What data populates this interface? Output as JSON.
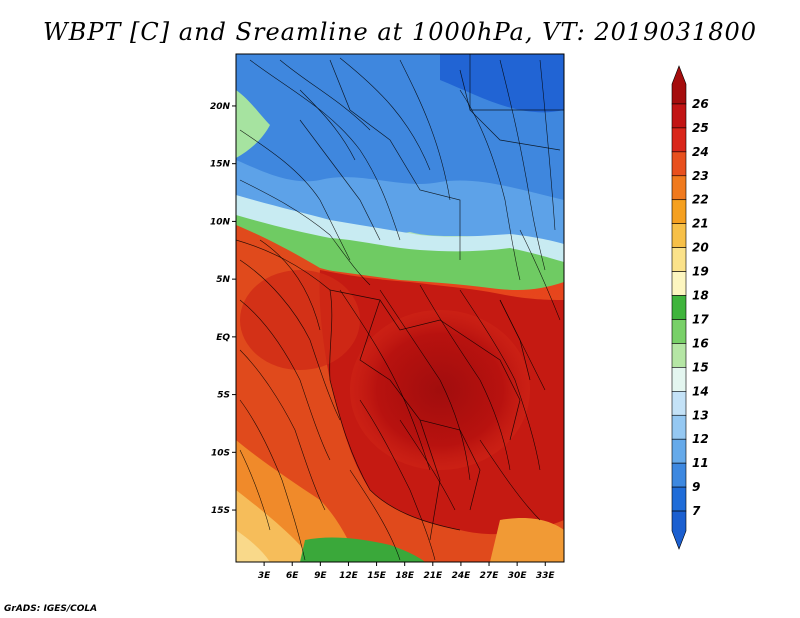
{
  "title": "WBPT [C] and Sreamline at 1000hPa, VT: 2019031800",
  "credit": "GrADS: IGES/COLA",
  "map": {
    "lat_labels": [
      "20N",
      "15N",
      "10N",
      "5N",
      "EQ",
      "5S",
      "10S",
      "15S"
    ],
    "lat_values": [
      20,
      15,
      10,
      5,
      0,
      -5,
      -10,
      -15
    ],
    "lon_labels": [
      "3E",
      "6E",
      "9E",
      "12E",
      "15E",
      "18E",
      "21E",
      "24E",
      "27E",
      "30E",
      "33E"
    ],
    "lon_values": [
      3,
      6,
      9,
      12,
      15,
      18,
      21,
      24,
      27,
      30,
      33
    ],
    "lon_range": [
      0,
      35
    ],
    "lat_range": [
      -19.5,
      24.5
    ]
  },
  "colorbar": {
    "labels": [
      "26",
      "25",
      "24",
      "23",
      "22",
      "21",
      "20",
      "19",
      "18",
      "17",
      "16",
      "15",
      "14",
      "13",
      "12",
      "11",
      "9",
      "7"
    ],
    "colors": [
      "#a50d0d",
      "#c21414",
      "#d9261a",
      "#e8501e",
      "#f07a1e",
      "#f5a020",
      "#f7c048",
      "#fbe28a",
      "#fdf6c0",
      "#3fb43c",
      "#78d068",
      "#b5e6a5",
      "#e4f6f0",
      "#c4e2f7",
      "#95c8f2",
      "#66aaea",
      "#3d88e0",
      "#1f6cd8",
      "#1b5fd0"
    ]
  }
}
